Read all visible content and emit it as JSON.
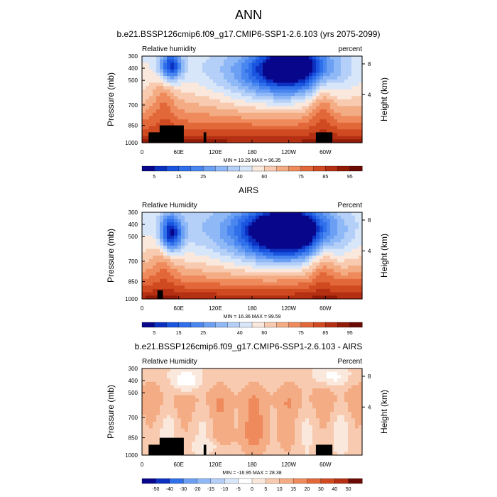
{
  "figure": {
    "title": "ANN"
  },
  "chart_data": [
    {
      "type": "heatmap",
      "title": "b.e21.BSSP126cmip6.f09_g17.CMIP6-SSP1-2.6.103 (yrs 2075-2099)",
      "left_label": "Relative humidity",
      "right_label": "percent",
      "xlabel": "",
      "ylabel": "Pressure (mb)",
      "ylabel_right": "Height (km)",
      "x_ticks": [
        "0",
        "60E",
        "120E",
        "180",
        "120W",
        "60W"
      ],
      "y_ticks": [
        "300",
        "400",
        "500",
        "700",
        "850",
        "1000"
      ],
      "height_ticks": [
        "8",
        "4"
      ],
      "stats": "MIN = 19.29  MAX = 96.35",
      "colorbar_levels": [
        "5",
        "10",
        "15",
        "20",
        "25",
        "30",
        "35",
        "40",
        "50",
        "60",
        "65",
        "70",
        "75",
        "80",
        "85",
        "90",
        "95"
      ],
      "colorbar_ticks": [
        "5",
        "15",
        "25",
        "40",
        "60",
        "75",
        "85",
        "95"
      ],
      "colorbar_colors": [
        "#08068a",
        "#0c30c0",
        "#1a55e0",
        "#2f6fea",
        "#4a86f0",
        "#6b9ff3",
        "#8fb8f6",
        "#b4cff8",
        "#d8e6fa",
        "#fbe8dc",
        "#f8cbb0",
        "#f4ac84",
        "#ee8a5c",
        "#e2683a",
        "#d04a21",
        "#b53012",
        "#921b08",
        "#6b0a04"
      ]
    },
    {
      "type": "heatmap",
      "title": "AIRS",
      "left_label": "Relative Humidity",
      "right_label": "Percent",
      "xlabel": "",
      "ylabel": "Pressure (mb)",
      "ylabel_right": "Height (km)",
      "x_ticks": [
        "0",
        "60E",
        "120E",
        "180",
        "120W",
        "60W"
      ],
      "y_ticks": [
        "300",
        "400",
        "500",
        "700",
        "850",
        "1000"
      ],
      "height_ticks": [
        "8",
        "4"
      ],
      "stats": "MIN = 16.36  MAX = 99.59",
      "colorbar_levels": [
        "5",
        "10",
        "15",
        "20",
        "25",
        "30",
        "35",
        "40",
        "50",
        "60",
        "65",
        "70",
        "75",
        "80",
        "85",
        "90",
        "95"
      ],
      "colorbar_ticks": [
        "5",
        "15",
        "25",
        "40",
        "60",
        "75",
        "85",
        "95"
      ],
      "colorbar_colors": [
        "#08068a",
        "#0c30c0",
        "#1a55e0",
        "#2f6fea",
        "#4a86f0",
        "#6b9ff3",
        "#8fb8f6",
        "#b4cff8",
        "#d8e6fa",
        "#fbe8dc",
        "#f8cbb0",
        "#f4ac84",
        "#ee8a5c",
        "#e2683a",
        "#d04a21",
        "#b53012",
        "#921b08",
        "#6b0a04"
      ]
    },
    {
      "type": "heatmap",
      "title": "b.e21.BSSP126cmip6.f09_g17.CMIP6-SSP1-2.6.103 - AIRS",
      "left_label": "Relative Humidity",
      "right_label": "Percent",
      "xlabel": "",
      "ylabel": "Pressure (mb)",
      "ylabel_right": "Height (km)",
      "x_ticks": [
        "0",
        "60E",
        "120E",
        "180",
        "120W",
        "60W"
      ],
      "y_ticks": [
        "300",
        "400",
        "500",
        "700",
        "850",
        "1000"
      ],
      "height_ticks": [
        "8",
        "4"
      ],
      "stats": "MIN = -16.95  MAX = 28.38",
      "colorbar_levels": [
        "-50",
        "-40",
        "-30",
        "-20",
        "-15",
        "-10",
        "-5",
        "0",
        "5",
        "10",
        "15",
        "20",
        "30",
        "40",
        "50"
      ],
      "colorbar_ticks": [
        "-50",
        "-40",
        "-30",
        "-20",
        "-15",
        "-10",
        "-5",
        "0",
        "5",
        "10",
        "15",
        "20",
        "30",
        "40",
        "50"
      ],
      "colorbar_colors": [
        "#08068a",
        "#0c30c0",
        "#2f6fea",
        "#6b9ff3",
        "#8fb8f6",
        "#b4cff8",
        "#d8e6fa",
        "#ffffff",
        "#fbe8dc",
        "#f8cbb0",
        "#f4ac84",
        "#ee8a5c",
        "#e2683a",
        "#d04a21",
        "#b53012",
        "#6b0a04"
      ]
    }
  ]
}
